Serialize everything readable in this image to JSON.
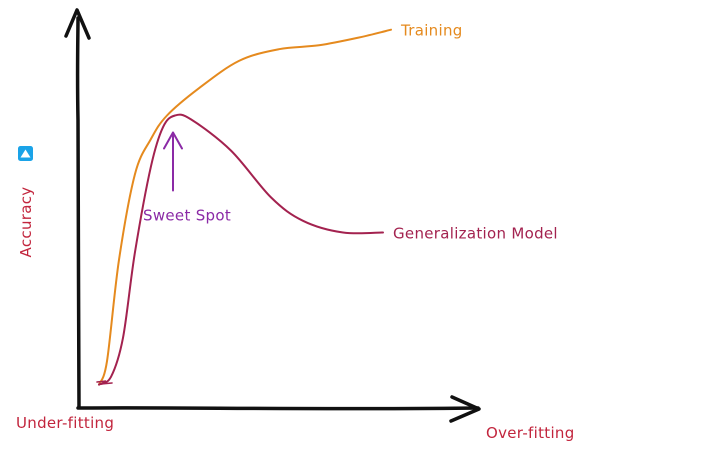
{
  "chart_data": {
    "type": "line",
    "title": "",
    "ylabel": "Accuracy",
    "x_axis_labels": {
      "start": "Under-fitting",
      "end": "Over-fitting"
    },
    "xlim": [
      0,
      100
    ],
    "ylim": [
      0,
      100
    ],
    "grid": false,
    "legend": "none",
    "series": [
      {
        "name": "Training",
        "color": "#e58a1e",
        "points": [
          [
            5,
            6
          ],
          [
            7,
            12
          ],
          [
            10,
            38
          ],
          [
            14,
            60
          ],
          [
            18,
            69
          ],
          [
            22,
            75
          ],
          [
            30,
            82
          ],
          [
            40,
            89
          ],
          [
            50,
            92
          ],
          [
            60,
            93
          ],
          [
            70,
            95
          ],
          [
            78,
            97
          ]
        ]
      },
      {
        "name": "Generalization Model",
        "color": "#a3224f",
        "points": [
          [
            5,
            6
          ],
          [
            8,
            8
          ],
          [
            11,
            18
          ],
          [
            14,
            40
          ],
          [
            18,
            62
          ],
          [
            21,
            72
          ],
          [
            24,
            75
          ],
          [
            28,
            74
          ],
          [
            38,
            66
          ],
          [
            48,
            54
          ],
          [
            56,
            48
          ],
          [
            66,
            45
          ],
          [
            76,
            45
          ]
        ]
      }
    ],
    "annotations": [
      {
        "text": "Sweet Spot",
        "color": "#8b2aa6",
        "point_to": [
          24,
          75
        ]
      }
    ]
  },
  "icon": {
    "name": "triangle-up-icon",
    "color": "#1aa3e8"
  },
  "colors": {
    "axis": "#111111",
    "ylabel": "#c2253d",
    "xlabels": "#c2253d"
  }
}
